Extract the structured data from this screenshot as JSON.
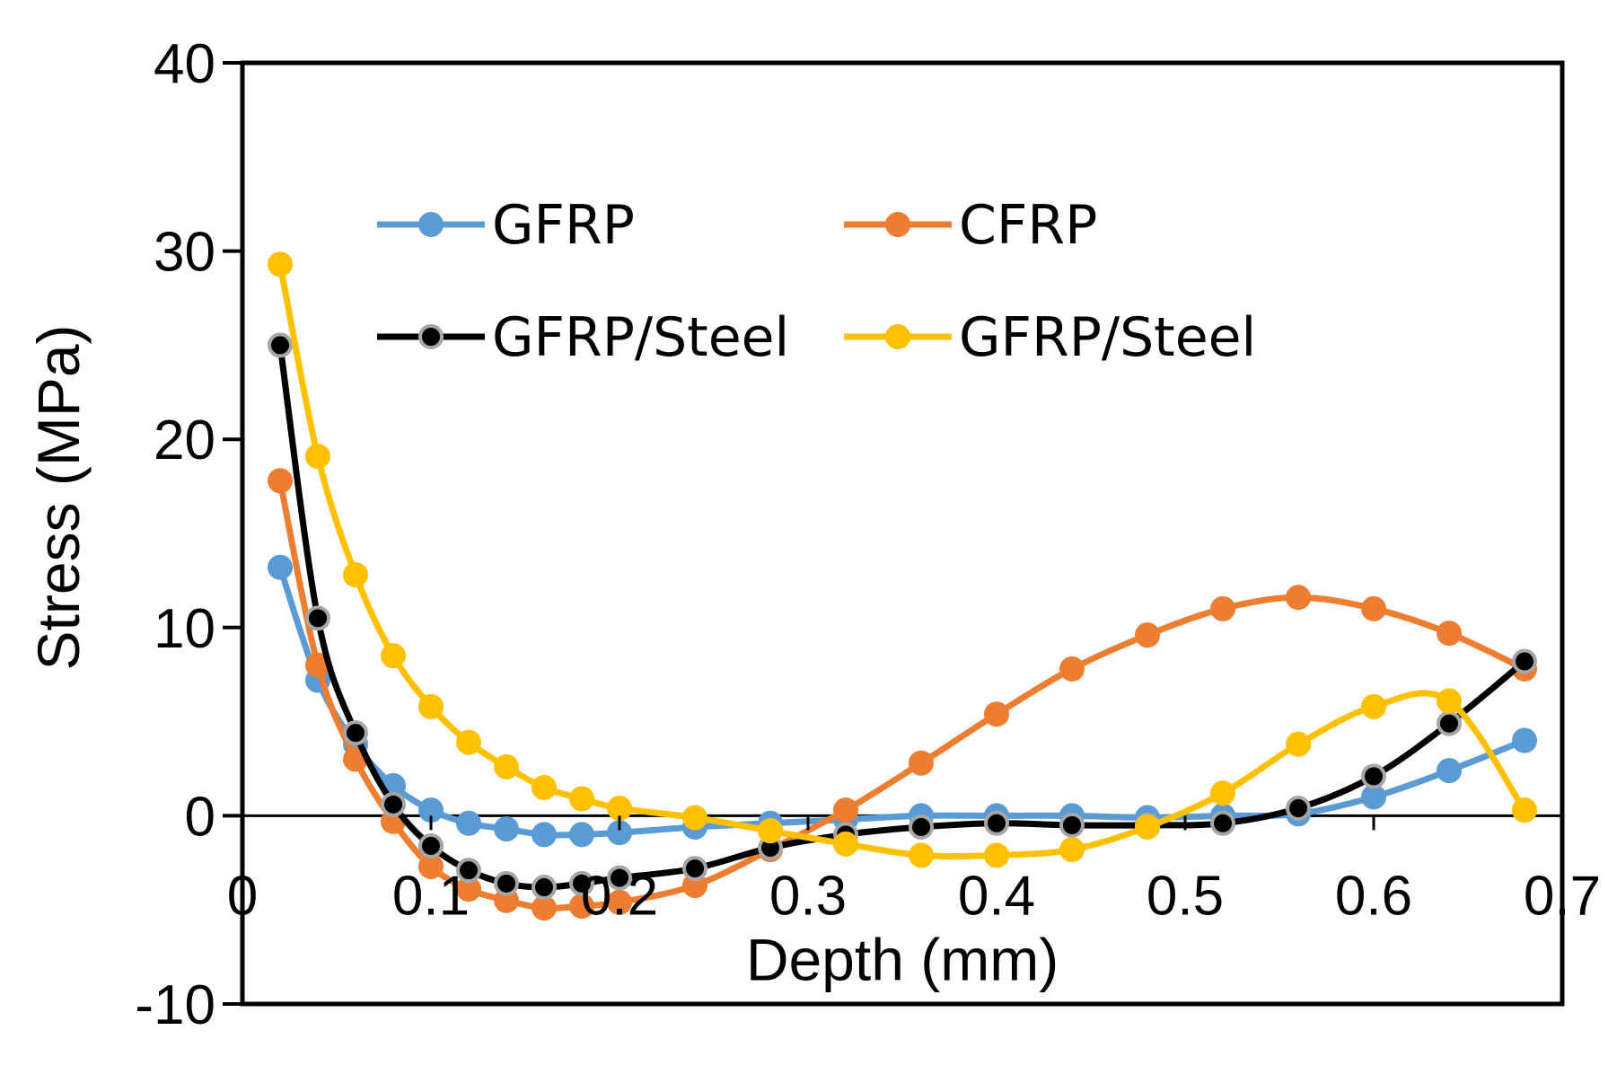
{
  "chart_data": {
    "type": "line",
    "xlabel": "Depth (mm)",
    "ylabel": "Stress (MPa)",
    "xlim": [
      0,
      0.7
    ],
    "ylim": [
      -10,
      40
    ],
    "x_ticks": [
      "0",
      "0.1",
      "0.2",
      "0.3",
      "0.4",
      "0.5",
      "0.6",
      "0.7"
    ],
    "y_ticks": [
      "-10",
      "0",
      "10",
      "20",
      "30",
      "40"
    ],
    "grid": false,
    "legend_placement": "upper center",
    "series": [
      {
        "name": "GFRP",
        "color": "#5B9BD5",
        "marker_edge": "#5B9BD5",
        "x": [
          0.02,
          0.04,
          0.06,
          0.08,
          0.1,
          0.12,
          0.14,
          0.16,
          0.18,
          0.2,
          0.24,
          0.28,
          0.32,
          0.36,
          0.4,
          0.44,
          0.48,
          0.52,
          0.56,
          0.6,
          0.64,
          0.68
        ],
        "values": [
          13.2,
          7.2,
          3.8,
          1.6,
          0.3,
          -0.4,
          -0.7,
          -1.0,
          -1.0,
          -0.9,
          -0.6,
          -0.4,
          -0.2,
          0.0,
          0.0,
          0.0,
          -0.1,
          0.0,
          0.1,
          1.0,
          2.4,
          4.0
        ]
      },
      {
        "name": "CFRP",
        "color": "#ED7D31",
        "marker_edge": "#ED7D31",
        "x": [
          0.02,
          0.04,
          0.06,
          0.08,
          0.1,
          0.12,
          0.14,
          0.16,
          0.18,
          0.2,
          0.24,
          0.28,
          0.32,
          0.36,
          0.4,
          0.44,
          0.48,
          0.52,
          0.56,
          0.6,
          0.64,
          0.68
        ],
        "values": [
          17.8,
          8.0,
          3.0,
          -0.3,
          -2.7,
          -3.9,
          -4.5,
          -4.9,
          -4.8,
          -4.6,
          -3.7,
          -1.8,
          0.3,
          2.8,
          5.4,
          7.8,
          9.6,
          11.0,
          11.6,
          11.0,
          9.7,
          7.8
        ]
      },
      {
        "name": "GFRP/Steel",
        "color": "#000000",
        "marker_edge": "#A6A6A6",
        "x": [
          0.02,
          0.04,
          0.06,
          0.08,
          0.1,
          0.12,
          0.14,
          0.16,
          0.18,
          0.2,
          0.24,
          0.28,
          0.32,
          0.36,
          0.4,
          0.44,
          0.48,
          0.52,
          0.56,
          0.6,
          0.64,
          0.68
        ],
        "values": [
          25.0,
          10.5,
          4.4,
          0.6,
          -1.6,
          -2.9,
          -3.6,
          -3.8,
          -3.6,
          -3.3,
          -2.8,
          -1.7,
          -1.0,
          -0.6,
          -0.4,
          -0.5,
          -0.5,
          -0.4,
          0.4,
          2.1,
          4.9,
          8.2
        ]
      },
      {
        "name": "GFRP/Steel",
        "color": "#FFC000",
        "marker_edge": "#FFC000",
        "x": [
          0.02,
          0.04,
          0.06,
          0.08,
          0.1,
          0.12,
          0.14,
          0.16,
          0.18,
          0.2,
          0.24,
          0.28,
          0.32,
          0.36,
          0.4,
          0.44,
          0.48,
          0.52,
          0.56,
          0.6,
          0.64,
          0.68
        ],
        "values": [
          29.3,
          19.1,
          12.8,
          8.5,
          5.8,
          3.9,
          2.6,
          1.5,
          0.9,
          0.4,
          -0.1,
          -0.8,
          -1.5,
          -2.1,
          -2.1,
          -1.8,
          -0.6,
          1.2,
          3.8,
          5.8,
          6.1,
          0.3
        ]
      }
    ]
  }
}
